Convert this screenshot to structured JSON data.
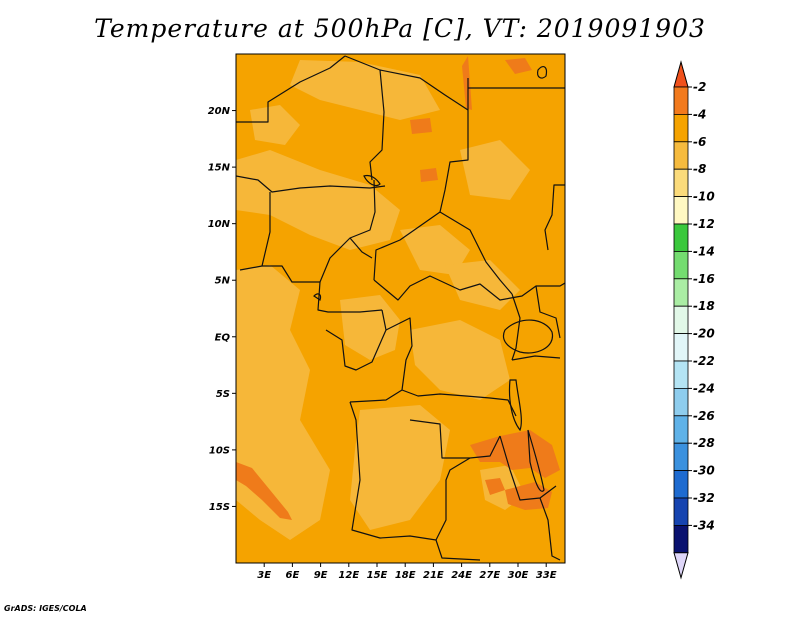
{
  "title": "Temperature at 500hPa [C], VT: 2019091903",
  "credit": "GrADS: IGES/COLA",
  "map": {
    "lon_range": [
      0,
      35
    ],
    "lat_range": [
      -20,
      25
    ],
    "lat_ticks": [
      {
        "value": 20,
        "label": "20N"
      },
      {
        "value": 15,
        "label": "15N"
      },
      {
        "value": 10,
        "label": "10N"
      },
      {
        "value": 5,
        "label": "5N"
      },
      {
        "value": 0,
        "label": "EQ"
      },
      {
        "value": -5,
        "label": "5S"
      },
      {
        "value": -10,
        "label": "10S"
      },
      {
        "value": -15,
        "label": "15S"
      }
    ],
    "lon_ticks": [
      {
        "value": 3,
        "label": "3E"
      },
      {
        "value": 6,
        "label": "6E"
      },
      {
        "value": 9,
        "label": "9E"
      },
      {
        "value": 12,
        "label": "12E"
      },
      {
        "value": 15,
        "label": "15E"
      },
      {
        "value": 18,
        "label": "18E"
      },
      {
        "value": 21,
        "label": "21E"
      },
      {
        "value": 24,
        "label": "24E"
      },
      {
        "value": 27,
        "label": "27E"
      },
      {
        "value": 30,
        "label": "30E"
      },
      {
        "value": 33,
        "label": "33E"
      }
    ],
    "colors": {
      "dominant": "#f5a300",
      "warm": "#ef7b1a",
      "cool": "#f6b739",
      "border": "#111111"
    }
  },
  "colorbar": {
    "labels": [
      "-2",
      "-4",
      "-6",
      "-8",
      "-10",
      "-12",
      "-14",
      "-16",
      "-18",
      "-20",
      "-22",
      "-24",
      "-26",
      "-28",
      "-30",
      "-32",
      "-34"
    ],
    "colors": [
      "#f0511c",
      "#f27a1d",
      "#f5a300",
      "#f6bb3e",
      "#fbdb7b",
      "#fff8c2",
      "#3ac83c",
      "#74dc70",
      "#aaeda4",
      "#e2f8e8",
      "#e2f6f8",
      "#b4e4f4",
      "#8ecdee",
      "#5fb2e8",
      "#3b91de",
      "#1e6bd0",
      "#1644b0",
      "#0a1270",
      "#ded6f8"
    ]
  }
}
